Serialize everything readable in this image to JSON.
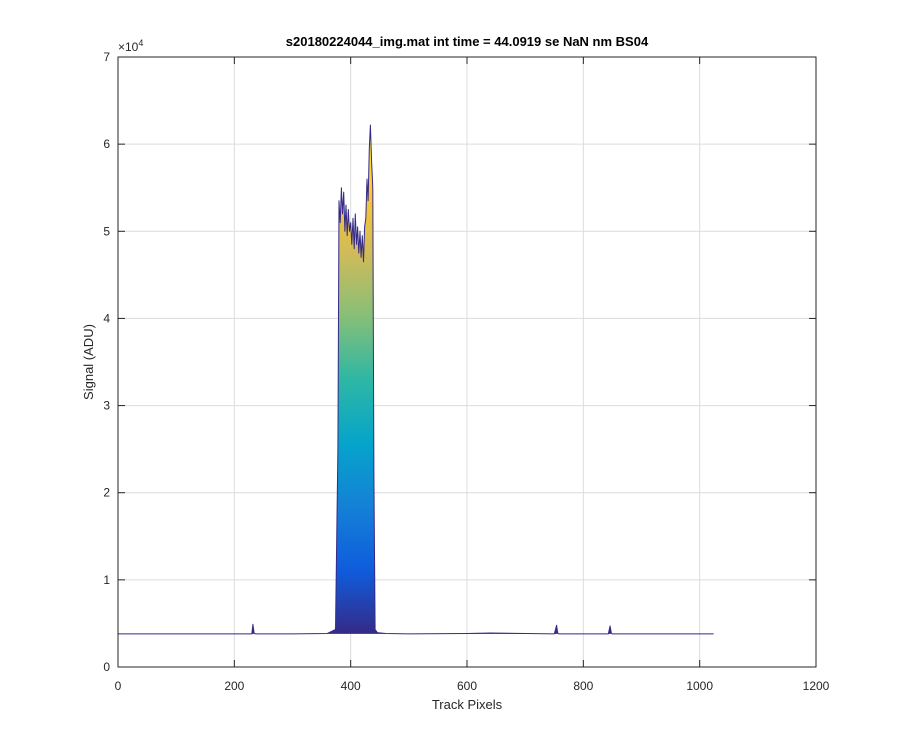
{
  "chart_data": {
    "type": "area",
    "title": "s20180224044_img.mat int time = 44.0919 se  NaN nm BS04",
    "xlabel": "Track Pixels",
    "ylabel": "Signal (ADU)",
    "xlim": [
      0,
      1200
    ],
    "ylim": [
      0,
      70000
    ],
    "x_ticks": [
      "0",
      "200",
      "400",
      "600",
      "800",
      "1000",
      "1200"
    ],
    "y_ticks": [
      "0",
      "1",
      "2",
      "3",
      "4",
      "5",
      "6",
      "7"
    ],
    "y_exponent": {
      "base": "×10",
      "power": "4"
    },
    "grid": true,
    "colormap": [
      "#352a87",
      "#0f5cdd",
      "#1481d6",
      "#06a4ca",
      "#2eb7a4",
      "#87bf77",
      "#d1bb59",
      "#fec832",
      "#f9fb0e"
    ],
    "baseline": 3800,
    "series": [
      {
        "x": [
          0,
          100,
          200,
          230,
          232,
          234,
          236,
          240,
          300,
          360,
          374,
          378,
          380,
          382,
          384,
          386,
          388,
          390,
          392,
          394,
          396,
          398,
          400,
          402,
          404,
          406,
          408,
          410,
          412,
          414,
          416,
          418,
          420,
          422,
          424,
          426,
          428,
          430,
          432,
          434,
          436,
          438,
          440,
          442,
          446,
          460,
          500,
          600,
          640,
          700,
          750,
          754,
          756,
          758,
          762,
          800,
          843,
          846,
          848,
          850,
          854,
          900,
          1000,
          1024
        ],
        "y": [
          3800,
          3800,
          3800,
          3800,
          4900,
          3900,
          3800,
          3800,
          3800,
          3850,
          4300,
          25000,
          53500,
          51000,
          55000,
          52000,
          54500,
          50000,
          53000,
          49500,
          52500,
          50000,
          51000,
          48500,
          51500,
          48000,
          52000,
          48500,
          50500,
          47500,
          50000,
          47000,
          49500,
          46500,
          50500,
          51500,
          56000,
          53500,
          59500,
          62200,
          58000,
          55000,
          22000,
          4300,
          3950,
          3850,
          3800,
          3850,
          3900,
          3850,
          3800,
          4800,
          3900,
          3800,
          3800,
          3800,
          3800,
          4700,
          3900,
          3800,
          3800,
          3800,
          3800,
          3800
        ]
      }
    ]
  }
}
